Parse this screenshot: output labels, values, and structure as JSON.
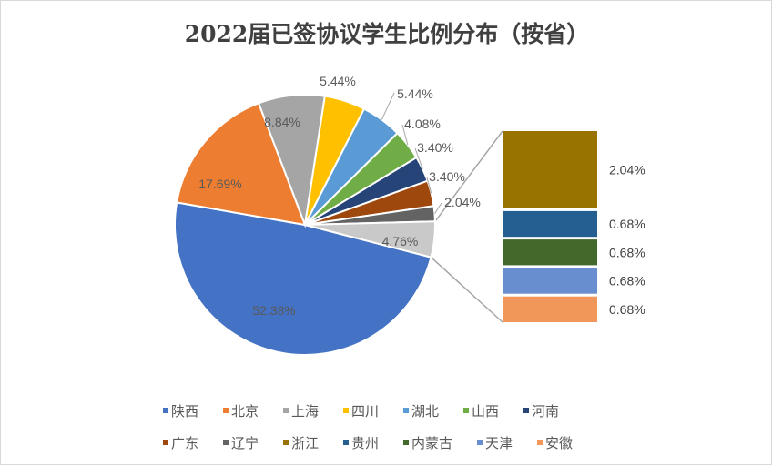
{
  "chart_data": {
    "type": "pie",
    "subtype": "pie-of-pie",
    "title": "2022届已签协议学生比例分布（按省）",
    "legend_position": "bottom",
    "slices": [
      {
        "name": "陕西",
        "value": 52.38,
        "label": "52.38%",
        "color": "#4472C4"
      },
      {
        "name": "北京",
        "value": 17.69,
        "label": "17.69%",
        "color": "#ED7D31"
      },
      {
        "name": "上海",
        "value": 8.84,
        "label": "8.84%",
        "color": "#A5A5A5"
      },
      {
        "name": "四川",
        "value": 5.44,
        "label": "5.44%",
        "color": "#FFC000"
      },
      {
        "name": "湖北",
        "value": 5.44,
        "label": "5.44%",
        "color": "#5B9BD5"
      },
      {
        "name": "山西",
        "value": 4.08,
        "label": "4.08%",
        "color": "#70AD47"
      },
      {
        "name": "河南",
        "value": 3.4,
        "label": "3.40%",
        "color": "#264478"
      },
      {
        "name": "广东",
        "value": 3.4,
        "label": "3.40%",
        "color": "#9E480E"
      },
      {
        "name": "辽宁",
        "value": 2.04,
        "label": "2.04%",
        "color": "#636363"
      }
    ],
    "other": {
      "value": 4.76,
      "label": "4.76%",
      "color": "#C9C9C9"
    },
    "secondary": [
      {
        "name": "浙江",
        "value": 2.04,
        "label": "2.04%",
        "color": "#997300"
      },
      {
        "name": "贵州",
        "value": 0.68,
        "label": "0.68%",
        "color": "#255E91"
      },
      {
        "name": "内蒙古",
        "value": 0.68,
        "label": "0.68%",
        "color": "#43682B"
      },
      {
        "name": "天津",
        "value": 0.68,
        "label": "0.68%",
        "color": "#698ED0"
      },
      {
        "name": "安徽",
        "value": 0.68,
        "label": "0.68%",
        "color": "#F1975A"
      }
    ]
  }
}
